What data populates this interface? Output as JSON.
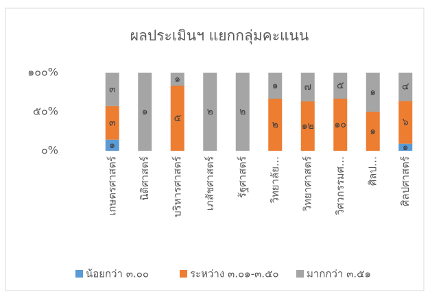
{
  "chart_data": {
    "type": "bar",
    "stacked_percent": true,
    "title": "ผลประเมินฯ แยกกลุ่มคะแนน",
    "categories": [
      "เกษตรศาสตร์",
      "นิติศาสตร์",
      "บริหารศาสตร์",
      "เภสัชศาสตร์",
      "รัฐศาสตร์",
      "วิทยาลัย…",
      "วิทยาศาสตร์",
      "วิศวกรรมศ…",
      "ศิลป…",
      "ศิลปศาสตร์"
    ],
    "series": [
      {
        "name": "น้อยกว่า ๓.๐๐",
        "color": "#5b9bd5",
        "values": [
          1,
          null,
          null,
          null,
          null,
          null,
          null,
          null,
          null,
          1
        ],
        "value_labels": [
          "๑",
          null,
          null,
          null,
          null,
          null,
          null,
          null,
          null,
          "๑"
        ]
      },
      {
        "name": "ระหว่าง ๓.๐๑-๓.๕๐",
        "color": "#ed7d31",
        "values": [
          3,
          null,
          5,
          null,
          null,
          2,
          12,
          10,
          1,
          6
        ],
        "value_labels": [
          "๓",
          null,
          "๕",
          null,
          null,
          "๒",
          "๑๒",
          "๑๐",
          "๑",
          "๖"
        ]
      },
      {
        "name": "มากกว่า ๓.๕๑",
        "color": "#a5a5a5",
        "values": [
          3,
          1,
          1,
          2,
          2,
          1,
          7,
          5,
          1,
          4
        ],
        "value_labels": [
          "๓",
          "๑",
          "๑",
          "๒",
          "๒",
          "๑",
          "๗",
          "๕",
          "๑",
          "๔"
        ]
      }
    ],
    "ylim": [
      0,
      100
    ],
    "yticks": [
      {
        "value": 0,
        "label": "๐%"
      },
      {
        "value": 50,
        "label": "๕๐%"
      },
      {
        "value": 100,
        "label": "๑๐๐%"
      }
    ],
    "grid": false,
    "legend": "bottom"
  }
}
